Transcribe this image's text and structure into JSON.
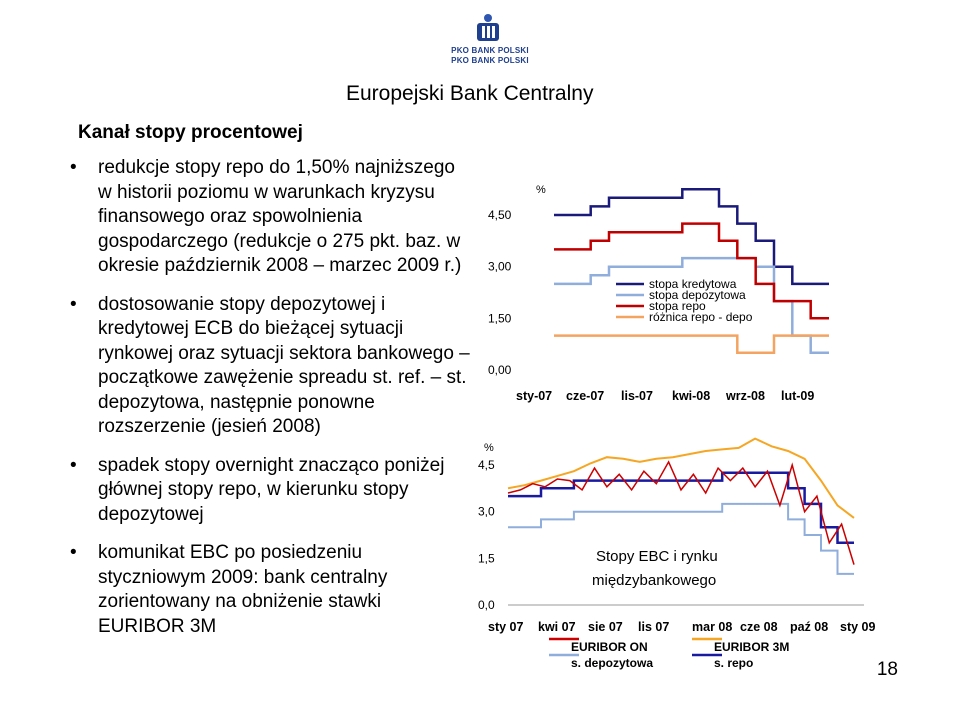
{
  "logo": {
    "line1": "PKO BANK POLSKI",
    "line2": "PKO BANK POLSKI",
    "icon": "pko-logo-icon"
  },
  "header": {
    "title": "Europejski Bank Centralny"
  },
  "section": {
    "title": "Kanał stopy procentowej"
  },
  "bullets": [
    {
      "text": "redukcje stopy repo do 1,50% najniższego w historii poziomu w warunkach kryzysu finansowego oraz spowolnienia gospodarczego (redukcje o 275 pkt. baz. w okresie październik 2008 – marzec 2009 r.)"
    },
    {
      "text": "dostosowanie stopy depozytowej i kredytowej ECB do bieżącej sytuacji rynkowej oraz sytuacji sektora bankowego – początkowe zawężenie spreadu st. ref. – st. depozytowa, następnie ponowne rozszerzenie (jesień 2008)"
    },
    {
      "text": "spadek stopy overnight znacząco poniżej głównej stopy repo, w kierunku stopy depozytowej"
    },
    {
      "text": "komunikat EBC po posiedzeniu styczniowym 2009: bank centralny zorientowany na obniżenie stawki EURIBOR 3M"
    }
  ],
  "page_number": "18",
  "chart_data": [
    {
      "type": "line",
      "ylabel": "%",
      "yticks": [
        "4,50",
        "3,00",
        "1,50",
        "0,00"
      ],
      "ylim": [
        0,
        5.5
      ],
      "xticks": [
        "sty-07",
        "cze-07",
        "lis-07",
        "kwi-08",
        "wrz-08",
        "lut-09"
      ],
      "legend_position": "right",
      "series": [
        {
          "name": "stopa kredytowa",
          "color": "#1a1a7a",
          "values": [
            4.5,
            4.5,
            4.75,
            5.0,
            5.0,
            5.0,
            5.0,
            5.25,
            5.25,
            4.75,
            4.25,
            3.75,
            3.0,
            2.5,
            2.5
          ]
        },
        {
          "name": "stopa depozytowa",
          "color": "#8faedb",
          "values": [
            2.5,
            2.5,
            2.75,
            3.0,
            3.0,
            3.0,
            3.0,
            3.25,
            3.25,
            3.25,
            3.25,
            3.0,
            2.0,
            1.0,
            0.5
          ]
        },
        {
          "name": "stopa repo",
          "color": "#c00000",
          "values": [
            3.5,
            3.5,
            3.75,
            4.0,
            4.0,
            4.0,
            4.0,
            4.25,
            4.25,
            3.75,
            3.25,
            2.5,
            2.0,
            2.0,
            1.5
          ]
        },
        {
          "name": "różnica repo - depo",
          "color": "#f4a460",
          "values": [
            1.0,
            1.0,
            1.0,
            1.0,
            1.0,
            1.0,
            1.0,
            1.0,
            1.0,
            1.0,
            0.5,
            0.5,
            1.0,
            1.0,
            1.0
          ]
        }
      ]
    },
    {
      "type": "line",
      "title": "Stopy EBC i rynku międzybankowego",
      "ylabel": "%",
      "yticks": [
        "4,5",
        "3,0",
        "1,5",
        "0,0"
      ],
      "ylim": [
        0,
        5.4
      ],
      "xticks": [
        "sty 07",
        "kwi 07",
        "sie 07",
        "lis 07",
        "mar 08",
        "cze 08",
        "paź 08",
        "sty 09"
      ],
      "legend_position": "bottom",
      "series": [
        {
          "name": "EURIBOR ON",
          "color": "#cc0000",
          "values": [
            3.6,
            3.7,
            3.9,
            3.8,
            4.05,
            4.0,
            3.7,
            4.4,
            3.8,
            4.2,
            3.7,
            4.3,
            3.9,
            4.6,
            3.7,
            4.2,
            3.6,
            4.4,
            4.0,
            4.4,
            3.8,
            4.3,
            3.2,
            4.5,
            3.0,
            3.5,
            2.0,
            2.6,
            1.3
          ]
        },
        {
          "name": "EURIBOR 3M",
          "color": "#f5a623",
          "values": [
            3.75,
            3.85,
            4.0,
            4.15,
            4.3,
            4.55,
            4.75,
            4.7,
            4.6,
            4.7,
            4.75,
            4.85,
            4.95,
            5.0,
            5.05,
            5.35,
            5.1,
            4.95,
            4.7,
            4.0,
            3.2,
            2.8
          ]
        },
        {
          "name": "s. depozytowa",
          "color": "#8faedb",
          "values": [
            2.5,
            2.5,
            2.75,
            2.75,
            3.0,
            3.0,
            3.0,
            3.0,
            3.0,
            3.0,
            3.0,
            3.0,
            3.0,
            3.25,
            3.25,
            3.25,
            3.25,
            2.75,
            2.25,
            1.75,
            1.0
          ]
        },
        {
          "name": "s. repo",
          "color": "#1a1aa0",
          "values": [
            3.5,
            3.5,
            3.75,
            3.75,
            4.0,
            4.0,
            4.0,
            4.0,
            4.0,
            4.0,
            4.0,
            4.0,
            4.0,
            4.25,
            4.25,
            4.25,
            4.25,
            3.75,
            3.25,
            2.5,
            2.0
          ]
        }
      ]
    }
  ]
}
